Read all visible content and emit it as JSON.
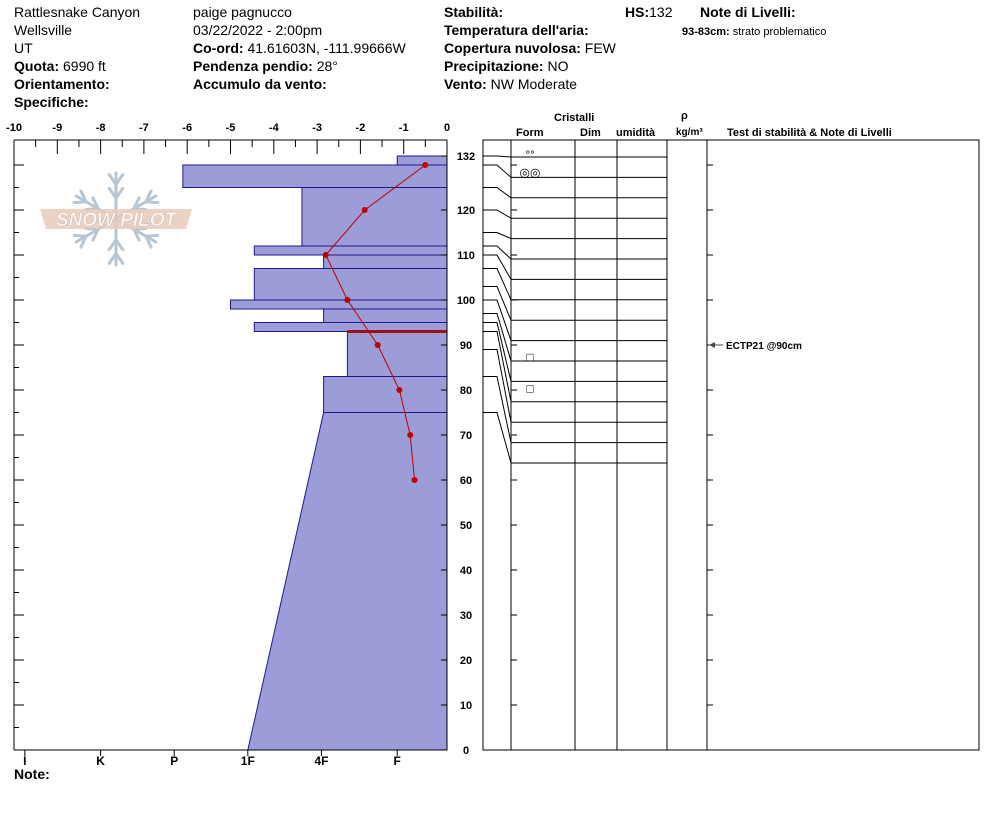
{
  "header": {
    "location": "Rattlesnake Canyon",
    "town": "Wellsville",
    "state": "UT",
    "elevation_label": "Quota:",
    "elevation_value": "6990 ft",
    "aspect_label": "Orientamento:",
    "specifics_label": "Specifiche:",
    "observer": "paige pagnucco",
    "datetime": "03/22/2022 - 2:00pm",
    "coord_label": "Co-ord:",
    "coord_value": "41.61603N, -111.99666W",
    "slope_label": "Pendenza pendio:",
    "slope_value": "28°",
    "wind_loading_label": "Accumulo da vento:",
    "stability_label": "Stabilità:",
    "air_temp_label": "Temperatura dell'aria:",
    "cloud_label": "Copertura nuvolosa:",
    "cloud_value": "FEW",
    "precip_label": "Precipitazione:",
    "precip_value": "NO",
    "wind_label": "Vento:",
    "wind_value": "NW Moderate",
    "hs_label": "HS:",
    "hs_value": "132",
    "layer_notes_label": "Note di Livelli:",
    "layer_note_range": "93-83cm:",
    "layer_note_text": "strato problematico"
  },
  "columns": {
    "crystals": "Cristalli",
    "form": "Form",
    "size": "Dim",
    "moisture": "umidità",
    "rho": "ρ",
    "density_unit": "kg/m³",
    "stability_notes": "Test di stabilità & Note di Livelli"
  },
  "notes_label": "Note:",
  "logo_text": "SNOW PILOT",
  "colors": {
    "hardness_fill": "#9c9cd8",
    "hardness_stroke": "#1a1a8c",
    "temperature": "#c00000",
    "weak_layer": "#a01010"
  },
  "chart_data": {
    "type": "snow-profile",
    "temperature_axis": {
      "min": -10,
      "max": 0,
      "ticks": [
        -10,
        -9,
        -8,
        -7,
        -6,
        -5,
        -4,
        -3,
        -2,
        -1,
        0
      ]
    },
    "height_axis": {
      "min": 0,
      "max": 135,
      "ticks": [
        0,
        10,
        20,
        30,
        40,
        50,
        60,
        70,
        80,
        90,
        100,
        110,
        120,
        132
      ]
    },
    "hardness_axis": {
      "labels": [
        "I",
        "K",
        "P",
        "1F",
        "4F",
        "F"
      ],
      "label_positions": [
        -9.75,
        -8.0,
        -6.3,
        -4.6,
        -2.9,
        -1.15
      ]
    },
    "hardness_layers": [
      {
        "top": 132,
        "bottom": 130,
        "hardness": -1.15
      },
      {
        "top": 130,
        "bottom": 125,
        "hardness": -6.1
      },
      {
        "top": 125,
        "bottom": 112,
        "hardness": -3.35
      },
      {
        "top": 112,
        "bottom": 110,
        "hardness": -4.45
      },
      {
        "top": 110,
        "bottom": 107,
        "hardness": -2.85
      },
      {
        "top": 107,
        "bottom": 100,
        "hardness": -4.45
      },
      {
        "top": 100,
        "bottom": 98,
        "hardness": -5.0
      },
      {
        "top": 98,
        "bottom": 95,
        "hardness": -2.85
      },
      {
        "top": 95,
        "bottom": 93,
        "hardness": -4.45
      },
      {
        "top": 93,
        "bottom": 83,
        "hardness": -2.3
      },
      {
        "top": 83,
        "bottom": 75,
        "hardness": -2.85
      },
      {
        "top": 75,
        "bottom": 0,
        "hardness_top": -2.85,
        "hardness_bottom": -4.6
      }
    ],
    "weak_layer_height": 93,
    "temperature_profile": [
      {
        "depth": 130,
        "temp": -0.5
      },
      {
        "depth": 120,
        "temp": -1.9
      },
      {
        "depth": 110,
        "temp": -2.8
      },
      {
        "depth": 100,
        "temp": -2.3
      },
      {
        "depth": 90,
        "temp": -1.6
      },
      {
        "depth": 80,
        "temp": -1.1
      },
      {
        "depth": 70,
        "temp": -0.85
      },
      {
        "depth": 60,
        "temp": -0.75
      }
    ],
    "layer_boundaries": [
      132,
      130,
      125,
      120,
      115,
      112,
      110,
      107,
      103,
      100,
      97,
      95,
      93,
      89,
      83,
      75
    ],
    "grain_symbols": [
      {
        "height": 131,
        "glyph": "°°"
      },
      {
        "height": 127,
        "glyph": "◎◎"
      },
      {
        "height": 86,
        "glyph": "□"
      },
      {
        "height": 79,
        "glyph": "□"
      }
    ],
    "stability_tests": [
      {
        "height": 90,
        "text": "ECTP21 @90cm"
      }
    ]
  }
}
